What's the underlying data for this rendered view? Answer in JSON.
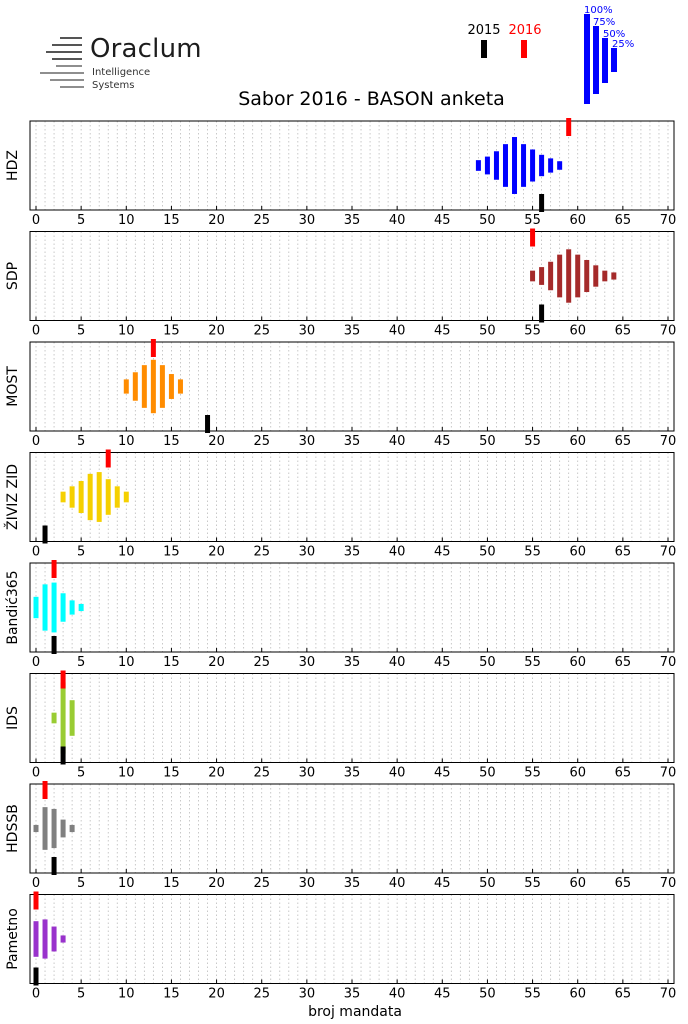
{
  "logo": {
    "name": "Oraclum",
    "line1": "Intelligence",
    "line2": "Systems",
    "icon": "oraclum-lines-icon"
  },
  "title": "Sabor 2016 - BASON anketa",
  "legend": {
    "year_2015": {
      "label": "2015",
      "color": "#000000"
    },
    "year_2016": {
      "label": "2016",
      "color": "#ff0000"
    },
    "percentiles": [
      "100%",
      "75%",
      "50%",
      "25%"
    ],
    "percentile_color": "#0000ff"
  },
  "chart_data": {
    "type": "bar",
    "xlabel": "broj mandata",
    "xlim": [
      0,
      70
    ],
    "xticks": [
      0,
      5,
      10,
      15,
      20,
      25,
      30,
      35,
      40,
      45,
      50,
      55,
      60,
      65,
      70
    ],
    "grid": true,
    "parties": [
      {
        "name": "HDZ",
        "color": "#0000ff",
        "result_2015": 56,
        "result_2016": 59,
        "distribution": [
          [
            49,
            0.15
          ],
          [
            50,
            0.25
          ],
          [
            51,
            0.4
          ],
          [
            52,
            0.6
          ],
          [
            53,
            0.8
          ],
          [
            54,
            0.6
          ],
          [
            55,
            0.45
          ],
          [
            56,
            0.3
          ],
          [
            57,
            0.2
          ],
          [
            58,
            0.12
          ]
        ]
      },
      {
        "name": "SDP",
        "color": "#a52a2a",
        "result_2015": 56,
        "result_2016": 55,
        "distribution": [
          [
            55,
            0.15
          ],
          [
            56,
            0.25
          ],
          [
            57,
            0.4
          ],
          [
            58,
            0.6
          ],
          [
            59,
            0.75
          ],
          [
            60,
            0.6
          ],
          [
            61,
            0.45
          ],
          [
            62,
            0.3
          ],
          [
            63,
            0.15
          ],
          [
            64,
            0.1
          ]
        ]
      },
      {
        "name": "MOST",
        "color": "#ff8c00",
        "result_2015": 19,
        "result_2016": 13,
        "distribution": [
          [
            10,
            0.2
          ],
          [
            11,
            0.4
          ],
          [
            12,
            0.6
          ],
          [
            13,
            0.75
          ],
          [
            14,
            0.6
          ],
          [
            15,
            0.35
          ],
          [
            16,
            0.2
          ]
        ]
      },
      {
        "name": "ŽIVIZ ZID",
        "color": "#f5d000",
        "result_2015": 1,
        "result_2016": 8,
        "distribution": [
          [
            3,
            0.15
          ],
          [
            4,
            0.3
          ],
          [
            5,
            0.45
          ],
          [
            6,
            0.65
          ],
          [
            7,
            0.7
          ],
          [
            8,
            0.5
          ],
          [
            9,
            0.3
          ],
          [
            10,
            0.15
          ]
        ]
      },
      {
        "name": "Bandić365",
        "color": "#00ffff",
        "result_2015": 2,
        "result_2016": 2,
        "distribution": [
          [
            0,
            0.3
          ],
          [
            1,
            0.65
          ],
          [
            2,
            0.7
          ],
          [
            3,
            0.4
          ],
          [
            4,
            0.2
          ],
          [
            5,
            0.1
          ]
        ]
      },
      {
        "name": "IDS",
        "color": "#99cc33",
        "result_2015": 3,
        "result_2016": 3,
        "distribution": [
          [
            2,
            0.15
          ],
          [
            3,
            1.0
          ],
          [
            4,
            0.5
          ]
        ]
      },
      {
        "name": "HDSSB",
        "color": "#808080",
        "result_2015": 2,
        "result_2016": 1,
        "distribution": [
          [
            0,
            0.1
          ],
          [
            1,
            0.6
          ],
          [
            2,
            0.55
          ],
          [
            3,
            0.25
          ],
          [
            4,
            0.1
          ]
        ]
      },
      {
        "name": "Pametno",
        "color": "#9932cc",
        "result_2015": 0,
        "result_2016": 0,
        "distribution": [
          [
            0,
            0.5
          ],
          [
            1,
            0.55
          ],
          [
            2,
            0.35
          ],
          [
            3,
            0.1
          ]
        ]
      }
    ]
  }
}
